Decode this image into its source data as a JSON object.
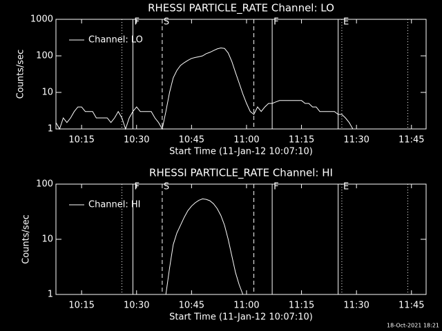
{
  "chart_data": [
    {
      "type": "line",
      "title": "RHESSI PARTICLE_RATE Channel: LO",
      "x_label": "Start Time (11-Jan-12 10:07:10)",
      "y_label": "Counts/sec",
      "ylog": true,
      "ylim": [
        1,
        1000
      ],
      "yticks": [
        1,
        10,
        100,
        1000
      ],
      "xlim": [
        "10:08",
        "11:49"
      ],
      "xticks": [
        "10:15",
        "10:30",
        "10:45",
        "11:00",
        "11:15",
        "11:30",
        "11:45"
      ],
      "x": [
        "10:08",
        "10:09",
        "10:10",
        "10:11",
        "10:12",
        "10:13",
        "10:14",
        "10:15",
        "10:16",
        "10:17",
        "10:18",
        "10:19",
        "10:20",
        "10:21",
        "10:22",
        "10:23",
        "10:24",
        "10:25",
        "10:26",
        "10:27",
        "10:28",
        "10:29",
        "10:30",
        "10:31",
        "10:32",
        "10:33",
        "10:34",
        "10:35",
        "10:36",
        "10:37",
        "10:38",
        "10:39",
        "10:40",
        "10:41",
        "10:42",
        "10:43",
        "10:44",
        "10:45",
        "10:46",
        "10:47",
        "10:48",
        "10:49",
        "10:50",
        "10:51",
        "10:52",
        "10:53",
        "10:54",
        "10:55",
        "10:56",
        "10:57",
        "10:58",
        "10:59",
        "11:00",
        "11:01",
        "11:02",
        "11:03",
        "11:04",
        "11:05",
        "11:06",
        "11:07",
        "11:08",
        "11:09",
        "11:10",
        "11:11",
        "11:12",
        "11:13",
        "11:14",
        "11:15",
        "11:16",
        "11:17",
        "11:18",
        "11:19",
        "11:20",
        "11:21",
        "11:22",
        "11:23",
        "11:24",
        "11:25",
        "11:26",
        "11:27",
        "11:28",
        "11:29"
      ],
      "series": [
        {
          "name": "Channel: LO",
          "color": "#ffffff",
          "values": [
            1.5,
            1,
            2,
            1.5,
            2,
            3,
            4,
            4,
            3,
            3,
            3,
            2,
            2,
            2,
            2,
            1.5,
            2,
            3,
            2,
            1,
            2,
            3,
            4,
            3,
            3,
            3,
            3,
            2,
            1.5,
            1,
            3,
            10,
            25,
            40,
            55,
            65,
            75,
            85,
            90,
            95,
            100,
            115,
            125,
            140,
            155,
            165,
            160,
            120,
            70,
            35,
            18,
            9,
            5,
            3,
            2.5,
            4,
            3,
            4,
            5,
            5,
            5.5,
            6,
            6,
            6,
            6,
            6,
            6,
            6,
            5,
            5,
            4,
            4,
            3,
            3,
            3,
            3,
            3,
            2.5,
            2.5,
            2,
            1.5,
            1
          ]
        }
      ],
      "markers": [
        {
          "x": "10:26",
          "style": "dotted"
        },
        {
          "x": "10:29",
          "style": "solid",
          "label": "F"
        },
        {
          "x": "10:37",
          "style": "dashed",
          "label": "S"
        },
        {
          "x": "11:02",
          "style": "dashed"
        },
        {
          "x": "11:07",
          "style": "solid",
          "label": "F"
        },
        {
          "x": "11:25",
          "style": "solid"
        },
        {
          "x": "11:26",
          "style": "dotted",
          "label": "E"
        },
        {
          "x": "11:44",
          "style": "dotted"
        }
      ]
    },
    {
      "type": "line",
      "title": "RHESSI PARTICLE_RATE Channel: HI",
      "x_label": "Start Time (11-Jan-12 10:07:10)",
      "y_label": "Counts/sec",
      "ylog": true,
      "ylim": [
        1,
        100
      ],
      "yticks": [
        1,
        10,
        100
      ],
      "xlim": [
        "10:08",
        "11:49"
      ],
      "xticks": [
        "10:15",
        "10:30",
        "10:45",
        "11:00",
        "11:15",
        "11:30",
        "11:45"
      ],
      "x": [
        "10:38",
        "10:39",
        "10:40",
        "10:41",
        "10:42",
        "10:43",
        "10:44",
        "10:45",
        "10:46",
        "10:47",
        "10:48",
        "10:49",
        "10:50",
        "10:51",
        "10:52",
        "10:53",
        "10:54",
        "10:55",
        "10:56",
        "10:57",
        "10:58",
        "10:59"
      ],
      "series": [
        {
          "name": "Channel: HI",
          "color": "#ffffff",
          "values": [
            1,
            3,
            8,
            13,
            18,
            25,
            33,
            40,
            46,
            51,
            54,
            53,
            50,
            44,
            36,
            27,
            18,
            10,
            5,
            2.5,
            1.5,
            1
          ]
        }
      ],
      "markers": [
        {
          "x": "10:26",
          "style": "dotted"
        },
        {
          "x": "10:29",
          "style": "solid",
          "label": "F"
        },
        {
          "x": "10:37",
          "style": "dashed",
          "label": "S"
        },
        {
          "x": "11:02",
          "style": "dashed"
        },
        {
          "x": "11:07",
          "style": "solid",
          "label": "F"
        },
        {
          "x": "11:25",
          "style": "solid"
        },
        {
          "x": "11:26",
          "style": "dotted",
          "label": "E"
        },
        {
          "x": "11:44",
          "style": "dotted"
        }
      ]
    }
  ],
  "footer": "18-Oct-2021 18:21"
}
